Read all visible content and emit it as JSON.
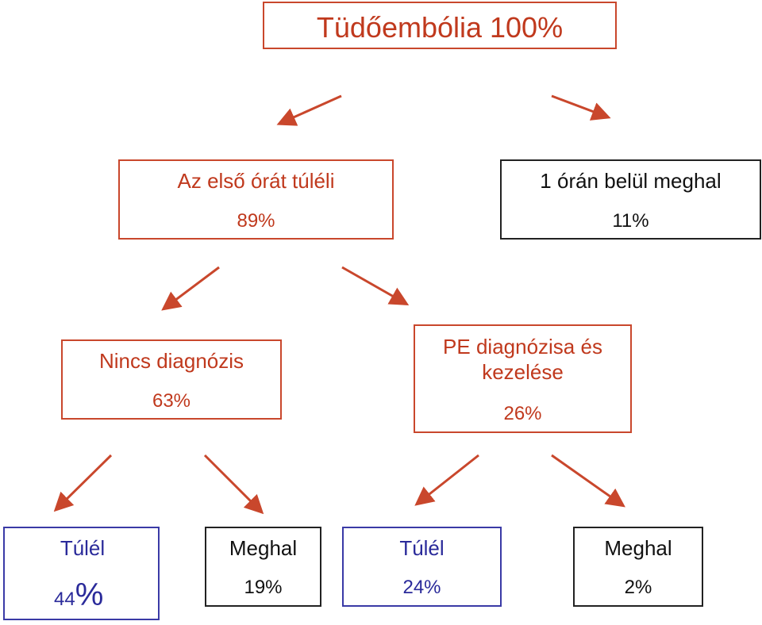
{
  "colors": {
    "red": "#c9472c",
    "black": "#222222",
    "blue": "#3a3aa6"
  },
  "root": {
    "title": "Tüdőembólia 100%"
  },
  "level1": {
    "survive": {
      "label": "Az első órát túléli",
      "value": "89%"
    },
    "die": {
      "label": "1 órán belül meghal",
      "value": "11%"
    }
  },
  "level2": {
    "no_diagnosis": {
      "label": "Nincs diagnózis",
      "value": "63%"
    },
    "diagnosed": {
      "label_line1": "PE diagnózisa és",
      "label_line2": "kezelése",
      "value": "26%"
    }
  },
  "level3": {
    "a": {
      "label": "Túlél",
      "value_num": "44",
      "value_sign": "%"
    },
    "b": {
      "label": "Meghal",
      "value": "19%"
    },
    "c": {
      "label": "Túlél",
      "value": "24%"
    },
    "d": {
      "label": "Meghal",
      "value": "2%"
    }
  }
}
